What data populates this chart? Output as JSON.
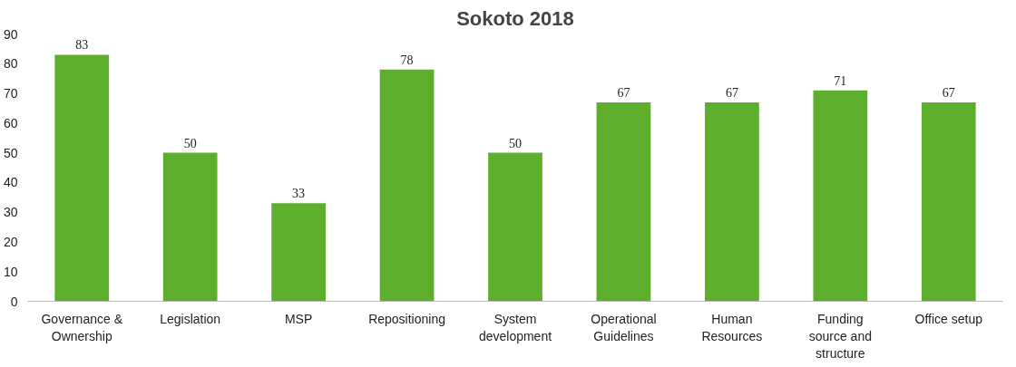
{
  "chart_data": {
    "type": "bar",
    "title": "Sokoto 2018",
    "categories": [
      "Governance & Ownership",
      "Legislation",
      "MSP",
      "Repositioning",
      "System development",
      "Operational Guidelines",
      "Human Resources",
      "Funding source and structure",
      "Office setup"
    ],
    "values": [
      83,
      50,
      33,
      78,
      50,
      67,
      67,
      71,
      67
    ],
    "color": "#5cae2c",
    "ylim": [
      0,
      90
    ],
    "yticks": [
      0,
      10,
      20,
      30,
      40,
      50,
      60,
      70,
      80,
      90
    ],
    "data_labels": true,
    "grid": false
  }
}
